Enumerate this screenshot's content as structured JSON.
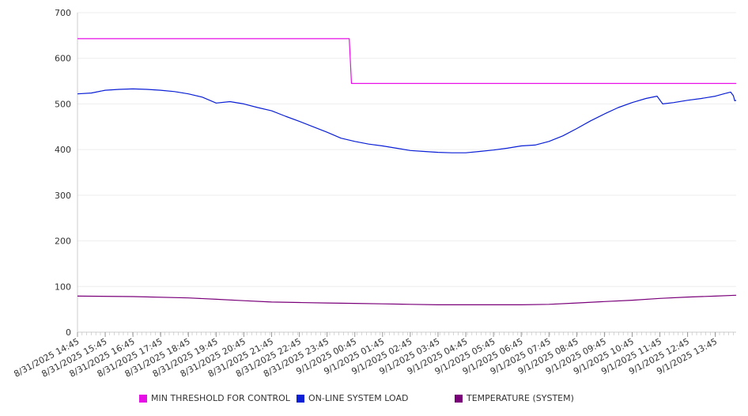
{
  "chart_data": {
    "type": "line",
    "title": "",
    "xlabel": "",
    "ylabel": "",
    "ylim": [
      0,
      700
    ],
    "yticks": [
      0,
      100,
      200,
      300,
      400,
      500,
      600,
      700
    ],
    "grid": true,
    "legend_position": "bottom",
    "x_tick_labels": [
      "8/31/2025 14:45",
      "8/31/2025 15:45",
      "8/31/2025 16:45",
      "8/31/2025 17:45",
      "8/31/2025 18:45",
      "8/31/2025 19:45",
      "8/31/2025 20:45",
      "8/31/2025 21:45",
      "8/31/2025 22:45",
      "8/31/2025 23:45",
      "9/1/2025 00:45",
      "9/1/2025 01:45",
      "9/1/2025 02:45",
      "9/1/2025 03:45",
      "9/1/2025 04:45",
      "9/1/2025 05:45",
      "9/1/2025 06:45",
      "9/1/2025 07:45",
      "9/1/2025 08:45",
      "9/1/2025 09:45",
      "9/1/2025 10:45",
      "9/1/2025 11:45",
      "9/1/2025 12:45",
      "9/1/2025 13:45"
    ],
    "x_hours_range": [
      0,
      23.75
    ],
    "series": [
      {
        "name": "MIN THRESHOLD FOR CONTROL",
        "color": "#e60fe6",
        "points": [
          [
            0,
            643
          ],
          [
            9.8,
            643
          ],
          [
            9.88,
            545
          ],
          [
            23.75,
            545
          ]
        ]
      },
      {
        "name": "ON-LINE SYSTEM LOAD",
        "color": "#0a1fd6",
        "points": [
          [
            0,
            522
          ],
          [
            0.5,
            524
          ],
          [
            1,
            530
          ],
          [
            1.5,
            532
          ],
          [
            2,
            533
          ],
          [
            2.5,
            532
          ],
          [
            3,
            530
          ],
          [
            3.5,
            527
          ],
          [
            4,
            522
          ],
          [
            4.5,
            515
          ],
          [
            5,
            502
          ],
          [
            5.5,
            505
          ],
          [
            6,
            500
          ],
          [
            6.5,
            492
          ],
          [
            7,
            485
          ],
          [
            7.5,
            473
          ],
          [
            8,
            462
          ],
          [
            8.5,
            450
          ],
          [
            9,
            438
          ],
          [
            9.5,
            425
          ],
          [
            10,
            418
          ],
          [
            10.5,
            412
          ],
          [
            11,
            408
          ],
          [
            11.5,
            403
          ],
          [
            12,
            398
          ],
          [
            12.5,
            396
          ],
          [
            13,
            394
          ],
          [
            13.5,
            393
          ],
          [
            14,
            393
          ],
          [
            14.5,
            396
          ],
          [
            15,
            399
          ],
          [
            15.5,
            403
          ],
          [
            16,
            408
          ],
          [
            16.5,
            410
          ],
          [
            17,
            418
          ],
          [
            17.5,
            430
          ],
          [
            18,
            446
          ],
          [
            18.5,
            463
          ],
          [
            19,
            478
          ],
          [
            19.5,
            492
          ],
          [
            20,
            503
          ],
          [
            20.5,
            512
          ],
          [
            20.9,
            517
          ],
          [
            21.1,
            500
          ],
          [
            21.5,
            503
          ],
          [
            22,
            508
          ],
          [
            22.5,
            512
          ],
          [
            23,
            517
          ],
          [
            23.3,
            522
          ],
          [
            23.55,
            526
          ],
          [
            23.65,
            518
          ],
          [
            23.7,
            507
          ],
          [
            23.75,
            508
          ]
        ]
      },
      {
        "name": "TEMPERATURE (SYSTEM)",
        "color": "#7a007a",
        "points": [
          [
            0,
            79
          ],
          [
            2,
            78
          ],
          [
            4,
            75
          ],
          [
            5,
            72
          ],
          [
            6,
            69
          ],
          [
            7,
            66
          ],
          [
            8,
            65
          ],
          [
            9,
            64
          ],
          [
            10,
            63
          ],
          [
            11,
            62
          ],
          [
            12,
            61
          ],
          [
            13,
            60
          ],
          [
            14,
            60
          ],
          [
            15,
            60
          ],
          [
            16,
            60
          ],
          [
            17,
            61
          ],
          [
            18,
            64
          ],
          [
            19,
            67
          ],
          [
            20,
            70
          ],
          [
            21,
            74
          ],
          [
            22,
            77
          ],
          [
            23,
            79
          ],
          [
            23.75,
            81
          ]
        ]
      }
    ]
  }
}
